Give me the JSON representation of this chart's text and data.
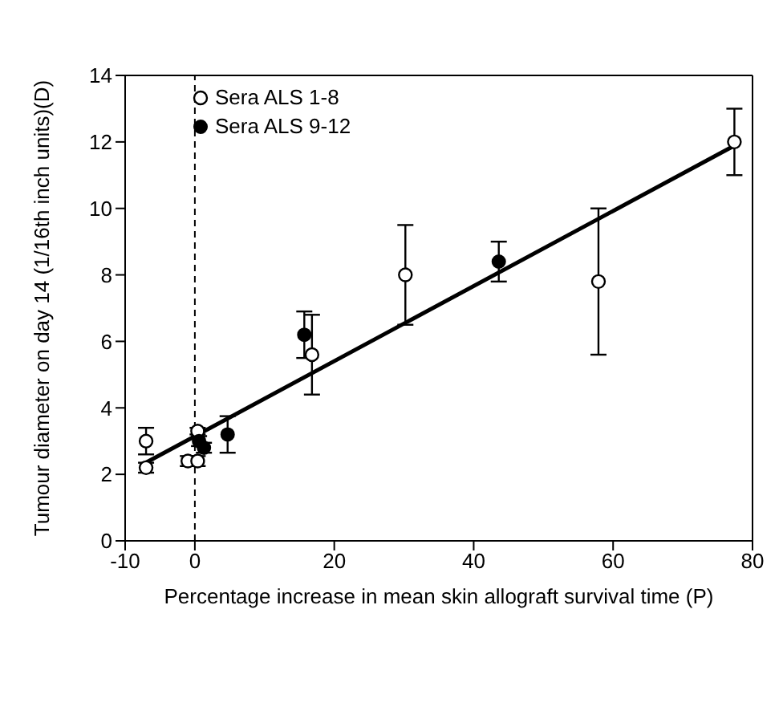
{
  "chart_data": {
    "type": "scatter",
    "xlabel": "Percentage increase in mean skin allograft survival time (P)",
    "ylabel": "Tumour diameter on day 14 (1/16th inch units)(D)",
    "xlim": [
      -10,
      80
    ],
    "xticks": [
      -10,
      0,
      20,
      40,
      60,
      80
    ],
    "ylim": [
      0,
      14
    ],
    "yticks": [
      0,
      2,
      4,
      6,
      8,
      10,
      12,
      14
    ],
    "legend": "top left",
    "marker": "circle",
    "ref_lines": [
      {
        "axis": "x",
        "value": 0,
        "line_style": "dashed"
      }
    ],
    "series": [
      {
        "name": "Sera  ALS 1-8",
        "color": "#000000",
        "marker": "circle-open",
        "x": [
          -7,
          -7,
          -1,
          0.4,
          0.4,
          16.8,
          30.2,
          57.9,
          77.4
        ],
        "values": [
          3.0,
          2.2,
          2.4,
          2.4,
          3.3,
          5.6,
          8.0,
          7.8,
          12.0
        ],
        "errors": [
          0.4,
          0.15,
          0.15,
          0.15,
          0.1,
          1.2,
          1.5,
          2.2,
          1.0
        ]
      },
      {
        "name": "Sera  ALS 9-12",
        "color": "#000000",
        "x": [
          0.6,
          1.3,
          4.7,
          15.7,
          43.6
        ],
        "values": [
          3.0,
          2.8,
          3.2,
          6.2,
          8.4
        ],
        "errors": [
          0.15,
          0.15,
          0.55,
          0.7,
          0.6
        ]
      },
      {
        "type": "line",
        "color": "#000000",
        "marker": "none",
        "x": [
          -7.5,
          77.5
        ],
        "values": [
          2.3,
          11.9
        ]
      }
    ]
  }
}
